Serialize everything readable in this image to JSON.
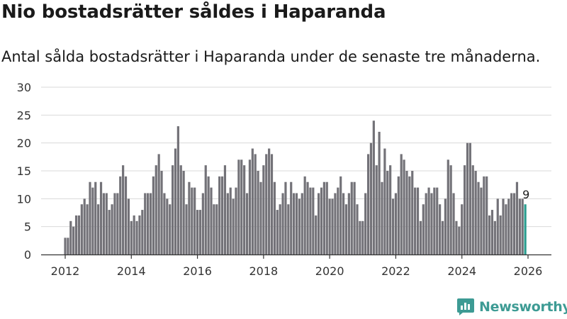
{
  "title": "Nio bostadsrätter såldes i Haparanda",
  "subtitle": "Antal sålda bostadsrätter i Haparanda under de senaste tre månaderna.",
  "brand": {
    "name": "Newsworthy",
    "icon": "newsworthy-logo-icon"
  },
  "colors": {
    "bar": "#737278",
    "highlight": "#2a9d8f",
    "grid": "#d9d9d9",
    "axis": "#333333",
    "brand": "#3d9b94"
  },
  "chart_data": {
    "type": "bar",
    "title": "Nio bostadsrätter såldes i Haparanda",
    "xlabel": "",
    "ylabel": "",
    "ylim": [
      0,
      30
    ],
    "yticks": [
      0,
      5,
      10,
      15,
      20,
      25,
      30
    ],
    "xticks": [
      2012,
      2014,
      2016,
      2018,
      2020,
      2022,
      2024,
      2026
    ],
    "x_start": 2012.0,
    "x_step": 0.08333,
    "values": [
      3,
      3,
      6,
      5,
      7,
      7,
      9,
      10,
      9,
      13,
      12,
      13,
      9,
      13,
      11,
      11,
      8,
      9,
      11,
      11,
      14,
      16,
      14,
      10,
      6,
      7,
      6,
      7,
      8,
      11,
      11,
      11,
      14,
      16,
      18,
      15,
      11,
      10,
      9,
      16,
      19,
      23,
      16,
      15,
      9,
      13,
      12,
      12,
      8,
      8,
      11,
      16,
      14,
      12,
      9,
      9,
      14,
      14,
      16,
      11,
      12,
      10,
      12,
      17,
      17,
      16,
      11,
      17,
      19,
      18,
      15,
      13,
      16,
      18,
      19,
      18,
      13,
      8,
      9,
      11,
      13,
      9,
      13,
      11,
      11,
      10,
      11,
      14,
      13,
      12,
      12,
      7,
      11,
      12,
      13,
      13,
      10,
      10,
      11,
      12,
      14,
      11,
      9,
      11,
      13,
      13,
      9,
      6,
      6,
      11,
      18,
      20,
      24,
      16,
      22,
      13,
      19,
      15,
      16,
      10,
      11,
      14,
      18,
      17,
      15,
      14,
      15,
      12,
      12,
      6,
      9,
      11,
      12,
      11,
      12,
      12,
      9,
      6,
      10,
      17,
      16,
      11,
      6,
      5,
      9,
      16,
      20,
      20,
      16,
      15,
      13,
      12,
      14,
      14,
      7,
      8,
      6,
      10,
      7,
      10,
      9,
      10,
      11,
      11,
      13,
      10,
      10,
      9
    ],
    "highlight_index": 167,
    "annotation": {
      "index": 167,
      "text": "9"
    }
  }
}
